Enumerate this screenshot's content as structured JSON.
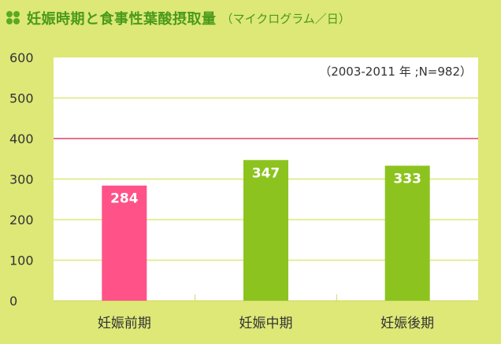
{
  "title": "妊娠時期と食事性葉酸摂取量",
  "unit": "（マイクログラム／日）",
  "note": "（2003-2011 年 ;N=982）",
  "colors": {
    "background": "#dde877",
    "plot": "#ffffff",
    "grid": "#dde877",
    "reference_line": "#e8457c",
    "pink_bar": "#ff5288",
    "green_bar": "#8dc31f",
    "title": "#4a9a1a"
  },
  "chart_data": {
    "type": "bar",
    "title": "妊娠時期と食事性葉酸摂取量",
    "ylabel": "",
    "xlabel": "",
    "categories": [
      "妊娠前期",
      "妊娠中期",
      "妊娠後期"
    ],
    "values": [
      284,
      347,
      333
    ],
    "data_labels": [
      "284",
      "347",
      "333"
    ],
    "bar_colors": [
      "#ff5288",
      "#8dc31f",
      "#8dc31f"
    ],
    "ylim": [
      0,
      600
    ],
    "yticks": [
      "0",
      "100",
      "200",
      "300",
      "400",
      "500",
      "600"
    ],
    "reference_line": 400,
    "grid": true
  }
}
